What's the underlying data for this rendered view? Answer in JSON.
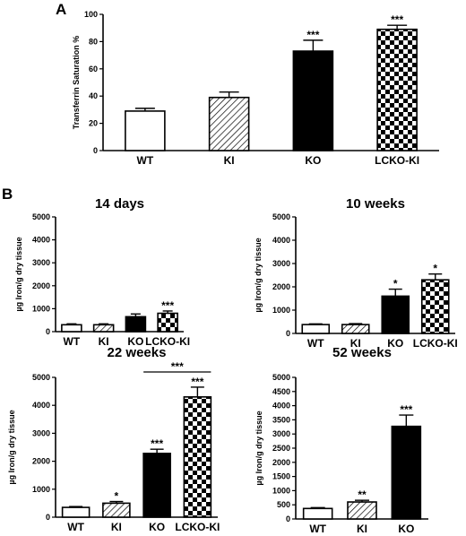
{
  "panels": {
    "a": "A",
    "b": "B"
  },
  "chart_data": [
    {
      "type": "bar",
      "title": "",
      "ylabel": "Transferrin Saturation %",
      "categories": [
        "WT",
        "KI",
        "KO",
        "LCKO-KI"
      ],
      "values": [
        29,
        39,
        73,
        89
      ],
      "errors": [
        2,
        4,
        8,
        3
      ],
      "significance": [
        "",
        "",
        "***",
        "***"
      ],
      "ylim": [
        0,
        100
      ],
      "yticks": [
        0,
        20,
        40,
        60,
        80,
        100
      ],
      "fills": [
        "white",
        "hatch",
        "black",
        "checker"
      ]
    },
    {
      "type": "bar",
      "title": "14 days",
      "ylabel": "µg Iron/g dry tissue",
      "categories": [
        "WT",
        "KI",
        "KO",
        "LCKO-KI"
      ],
      "values": [
        300,
        300,
        650,
        800
      ],
      "errors": [
        40,
        40,
        120,
        100
      ],
      "significance": [
        "",
        "",
        "",
        "***"
      ],
      "ylim": [
        0,
        5000
      ],
      "yticks": [
        0,
        1000,
        2000,
        3000,
        4000,
        5000
      ],
      "fills": [
        "white",
        "hatch",
        "black",
        "checker"
      ]
    },
    {
      "type": "bar",
      "title": "10 weeks",
      "ylabel": "µg Iron/g dry tissue",
      "categories": [
        "WT",
        "KI",
        "KO",
        "LCKO-KI"
      ],
      "values": [
        380,
        380,
        1600,
        2300
      ],
      "errors": [
        30,
        40,
        300,
        250
      ],
      "significance": [
        "",
        "",
        "*",
        "*"
      ],
      "ylim": [
        0,
        5000
      ],
      "yticks": [
        0,
        1000,
        2000,
        3000,
        4000,
        5000
      ],
      "fills": [
        "white",
        "hatch",
        "black",
        "checker"
      ]
    },
    {
      "type": "bar",
      "title": "22 weeks",
      "ylabel": "µg Iron/g dry tissue",
      "categories": [
        "WT",
        "KI",
        "KO",
        "LCKO-KI"
      ],
      "values": [
        350,
        500,
        2280,
        4300
      ],
      "errors": [
        30,
        60,
        150,
        350
      ],
      "significance": [
        "",
        "*",
        "***",
        "***"
      ],
      "bracket": {
        "from": 2,
        "to": 3,
        "label": "***"
      },
      "ylim": [
        0,
        5000
      ],
      "yticks": [
        0,
        1000,
        2000,
        3000,
        4000,
        5000
      ],
      "fills": [
        "white",
        "hatch",
        "black",
        "checker"
      ]
    },
    {
      "type": "bar",
      "title": "52 weeks",
      "ylabel": "µg Iron/g dry tissue",
      "categories": [
        "WT",
        "KI",
        "KO"
      ],
      "values": [
        370,
        600,
        3270
      ],
      "errors": [
        30,
        60,
        400
      ],
      "significance": [
        "",
        "**",
        "***"
      ],
      "ylim": [
        0,
        5000
      ],
      "yticks": [
        0,
        500,
        1000,
        1500,
        2000,
        2500,
        3000,
        3500,
        4000,
        4500,
        5000
      ],
      "fills": [
        "white",
        "hatch",
        "black"
      ]
    }
  ]
}
